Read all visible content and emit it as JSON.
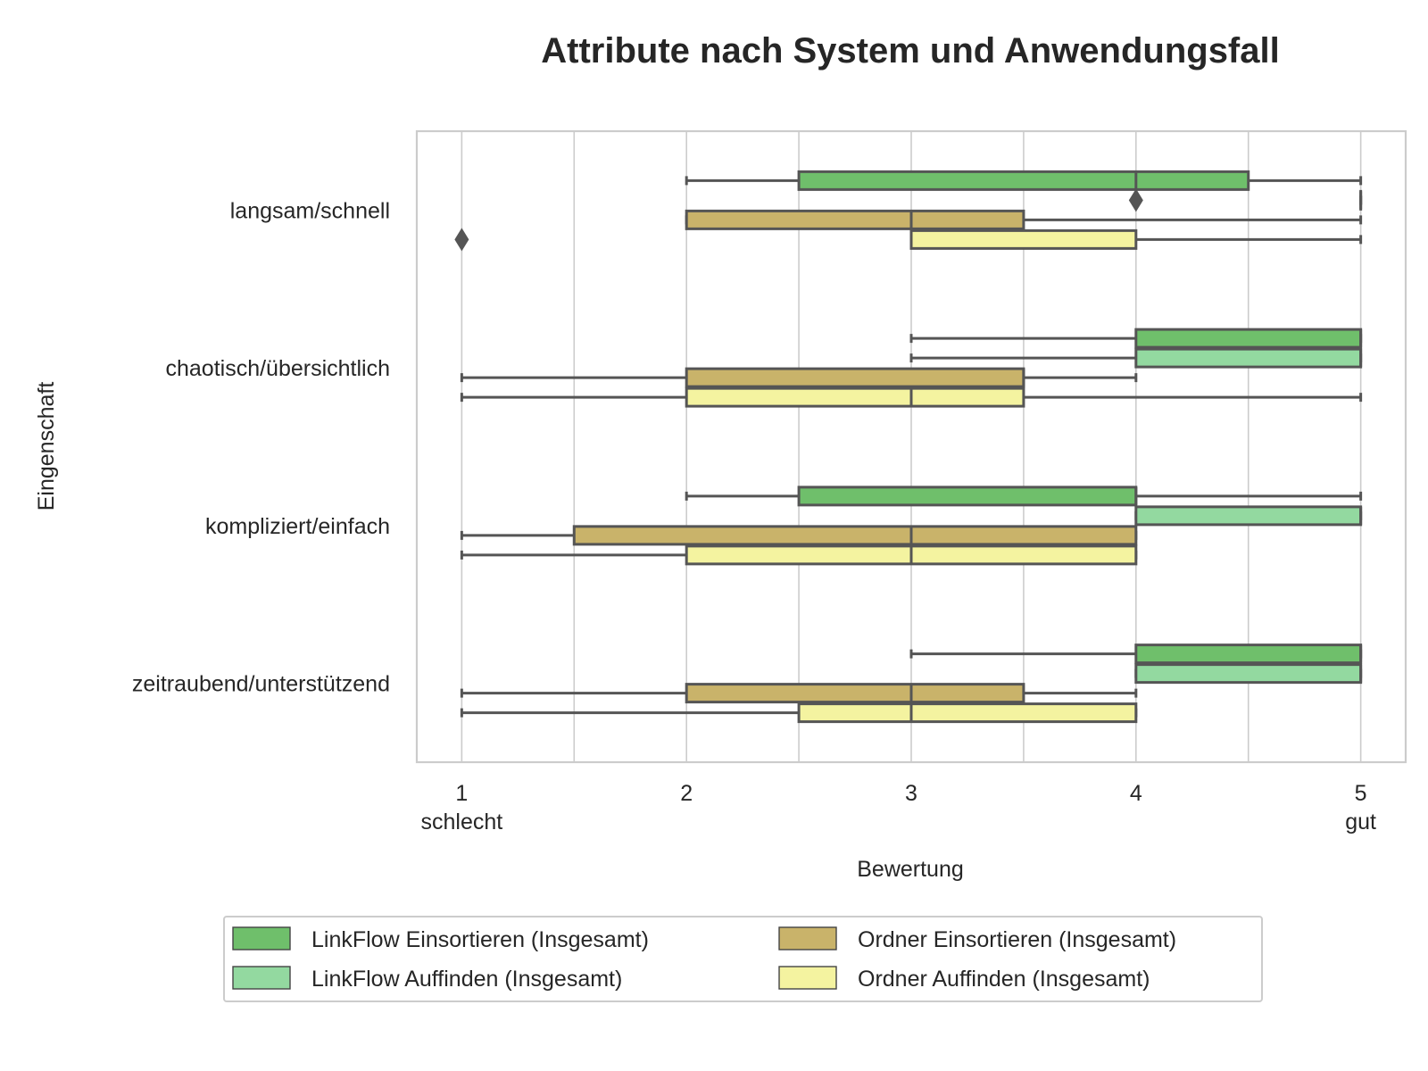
{
  "chart_data": {
    "type": "boxplot",
    "orientation": "horizontal",
    "title": "Attribute nach System und Anwendungsfall",
    "xlabel": "Bewertung",
    "ylabel": "Eingenschaft",
    "xlim": [
      0.8,
      5.2
    ],
    "xticks": [
      {
        "value": 1,
        "label": "1",
        "sublabel": "schlecht"
      },
      {
        "value": 2,
        "label": "2",
        "sublabel": ""
      },
      {
        "value": 3,
        "label": "3",
        "sublabel": ""
      },
      {
        "value": 4,
        "label": "4",
        "sublabel": ""
      },
      {
        "value": 5,
        "label": "5",
        "sublabel": "gut"
      }
    ],
    "grid": true,
    "legend_position": "bottom",
    "categories": [
      "langsam/schnell",
      "chaotisch/übersichtlich",
      "kompliziert/einfach",
      "zeitraubend/unterstützend"
    ],
    "series": [
      {
        "name": "LinkFlow Einsortieren (Insgesamt)",
        "color": "#6fbf6b",
        "boxes": [
          {
            "whislo": 2,
            "q1": 2.5,
            "med": 4,
            "q3": 4.5,
            "whishi": 5,
            "fliers": []
          },
          {
            "whislo": 3,
            "q1": 4,
            "med": 5,
            "q3": 5,
            "whishi": 5,
            "fliers": []
          },
          {
            "whislo": 2,
            "q1": 2.5,
            "med": 4,
            "q3": 4,
            "whishi": 5,
            "fliers": []
          },
          {
            "whislo": 3,
            "q1": 4,
            "med": 5,
            "q3": 5,
            "whishi": 5,
            "fliers": []
          }
        ]
      },
      {
        "name": "LinkFlow Auffinden (Insgesamt)",
        "color": "#93d9a0",
        "boxes": [
          {
            "whislo": 5,
            "q1": 5,
            "med": 5,
            "q3": 5,
            "whishi": 5,
            "fliers": [
              4
            ]
          },
          {
            "whislo": 3,
            "q1": 4,
            "med": 5,
            "q3": 5,
            "whishi": 5,
            "fliers": []
          },
          {
            "whislo": 4,
            "q1": 4,
            "med": 5,
            "q3": 5,
            "whishi": 5,
            "fliers": []
          },
          {
            "whislo": 4,
            "q1": 4,
            "med": 5,
            "q3": 5,
            "whishi": 5,
            "fliers": []
          }
        ]
      },
      {
        "name": "Ordner Einsortieren (Insgesamt)",
        "color": "#c9b36a",
        "boxes": [
          {
            "whislo": 2,
            "q1": 2,
            "med": 3,
            "q3": 3.5,
            "whishi": 5,
            "fliers": []
          },
          {
            "whislo": 1,
            "q1": 2,
            "med": 3.5,
            "q3": 3.5,
            "whishi": 4,
            "fliers": []
          },
          {
            "whislo": 1,
            "q1": 1.5,
            "med": 3,
            "q3": 4,
            "whishi": 4,
            "fliers": []
          },
          {
            "whislo": 1,
            "q1": 2,
            "med": 3,
            "q3": 3.5,
            "whishi": 4,
            "fliers": []
          }
        ]
      },
      {
        "name": "Ordner Auffinden (Insgesamt)",
        "color": "#f4f3a0",
        "boxes": [
          {
            "whislo": 3,
            "q1": 3,
            "med": 3,
            "q3": 4,
            "whishi": 5,
            "fliers": [
              1
            ]
          },
          {
            "whislo": 1,
            "q1": 2,
            "med": 3,
            "q3": 3.5,
            "whishi": 5,
            "fliers": []
          },
          {
            "whislo": 1,
            "q1": 2,
            "med": 3,
            "q3": 4,
            "whishi": 4,
            "fliers": []
          },
          {
            "whislo": 1,
            "q1": 2.5,
            "med": 3,
            "q3": 4,
            "whishi": 4,
            "fliers": []
          }
        ]
      }
    ],
    "colors": {
      "edge": "#555555",
      "grid": "#cccccc",
      "frame": "#cccccc",
      "flier": "#555555"
    }
  }
}
